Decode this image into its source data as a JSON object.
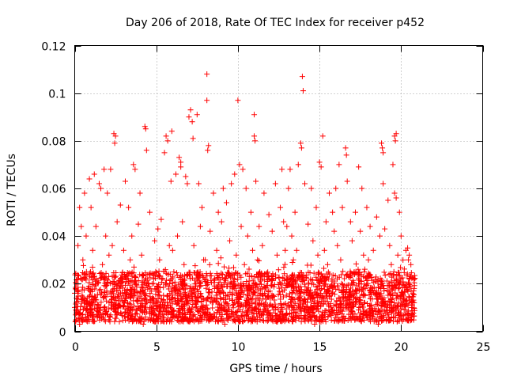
{
  "chart_data": {
    "type": "scatter",
    "title": "Day 206 of 2018, Rate Of TEC Index for receiver p452",
    "xlabel": "GPS time / hours",
    "ylabel": "ROTI / TECUs",
    "xlim": [
      0,
      25
    ],
    "ylim": [
      0,
      0.12
    ],
    "xticks": [
      "0",
      "5",
      "10",
      "15",
      "20",
      "25"
    ],
    "xtick_values": [
      0,
      5,
      10,
      15,
      20,
      25
    ],
    "yticks": [
      "0",
      "0.02",
      "0.04",
      "0.06",
      "0.08",
      "0.1",
      "0.12"
    ],
    "ytick_values": [
      0,
      0.02,
      0.04,
      0.06,
      0.08,
      0.1,
      0.12
    ],
    "grid": true,
    "marker": "+",
    "series": [
      {
        "name": "ROTI",
        "color": "#ff0000",
        "x_range": [
          0,
          20.85
        ],
        "bulk_range": [
          0.004,
          0.025
        ],
        "dense_points_count": 2600,
        "points": [
          [
            8.1,
            0.108
          ],
          [
            13.95,
            0.107
          ],
          [
            8.1,
            0.097
          ],
          [
            10.0,
            0.097
          ],
          [
            14.0,
            0.101
          ],
          [
            7.1,
            0.093
          ],
          [
            7.0,
            0.09
          ],
          [
            7.2,
            0.088
          ],
          [
            7.5,
            0.091
          ],
          [
            11.0,
            0.091
          ],
          [
            4.3,
            0.086
          ],
          [
            4.35,
            0.085
          ],
          [
            5.6,
            0.082
          ],
          [
            5.7,
            0.08
          ],
          [
            5.95,
            0.084
          ],
          [
            2.4,
            0.083
          ],
          [
            2.5,
            0.082
          ],
          [
            2.45,
            0.079
          ],
          [
            11.0,
            0.082
          ],
          [
            11.05,
            0.08
          ],
          [
            13.85,
            0.079
          ],
          [
            13.9,
            0.077
          ],
          [
            15.2,
            0.082
          ],
          [
            19.6,
            0.082
          ],
          [
            19.65,
            0.08
          ],
          [
            19.7,
            0.083
          ],
          [
            18.8,
            0.079
          ],
          [
            18.85,
            0.077
          ],
          [
            18.9,
            0.075
          ],
          [
            16.6,
            0.077
          ],
          [
            16.65,
            0.074
          ],
          [
            4.4,
            0.076
          ],
          [
            7.25,
            0.081
          ],
          [
            8.2,
            0.078
          ],
          [
            8.15,
            0.076
          ],
          [
            5.5,
            0.075
          ],
          [
            6.4,
            0.073
          ],
          [
            6.5,
            0.071
          ],
          [
            6.5,
            0.069
          ],
          [
            10.1,
            0.07
          ],
          [
            10.3,
            0.068
          ],
          [
            9.8,
            0.066
          ],
          [
            12.7,
            0.068
          ],
          [
            13.2,
            0.068
          ],
          [
            13.7,
            0.07
          ],
          [
            15.0,
            0.071
          ],
          [
            15.1,
            0.069
          ],
          [
            16.2,
            0.07
          ],
          [
            17.4,
            0.069
          ],
          [
            19.5,
            0.07
          ],
          [
            3.6,
            0.07
          ],
          [
            3.7,
            0.068
          ],
          [
            1.8,
            0.068
          ],
          [
            2.2,
            0.068
          ],
          [
            1.2,
            0.066
          ],
          [
            0.9,
            0.064
          ],
          [
            1.5,
            0.062
          ],
          [
            1.6,
            0.06
          ],
          [
            3.1,
            0.063
          ],
          [
            5.9,
            0.063
          ],
          [
            6.2,
            0.066
          ],
          [
            6.8,
            0.065
          ],
          [
            6.9,
            0.062
          ],
          [
            7.6,
            0.062
          ],
          [
            9.1,
            0.06
          ],
          [
            9.6,
            0.062
          ],
          [
            10.5,
            0.06
          ],
          [
            11.1,
            0.063
          ],
          [
            12.3,
            0.062
          ],
          [
            13.1,
            0.06
          ],
          [
            14.1,
            0.062
          ],
          [
            14.5,
            0.06
          ],
          [
            16.0,
            0.06
          ],
          [
            16.7,
            0.063
          ],
          [
            17.6,
            0.06
          ],
          [
            18.9,
            0.062
          ],
          [
            19.6,
            0.058
          ],
          [
            19.7,
            0.056
          ],
          [
            4.0,
            0.058
          ],
          [
            2.0,
            0.058
          ],
          [
            0.6,
            0.058
          ],
          [
            8.5,
            0.058
          ],
          [
            11.6,
            0.058
          ],
          [
            15.6,
            0.058
          ],
          [
            19.2,
            0.055
          ],
          [
            0.3,
            0.052
          ],
          [
            1.0,
            0.052
          ],
          [
            2.8,
            0.053
          ],
          [
            3.3,
            0.052
          ],
          [
            4.6,
            0.05
          ],
          [
            5.3,
            0.047
          ],
          [
            7.8,
            0.052
          ],
          [
            8.8,
            0.05
          ],
          [
            9.3,
            0.054
          ],
          [
            10.8,
            0.05
          ],
          [
            11.9,
            0.049
          ],
          [
            12.6,
            0.052
          ],
          [
            13.5,
            0.05
          ],
          [
            14.8,
            0.052
          ],
          [
            15.8,
            0.05
          ],
          [
            16.4,
            0.052
          ],
          [
            17.2,
            0.05
          ],
          [
            17.9,
            0.052
          ],
          [
            18.5,
            0.048
          ],
          [
            19.9,
            0.05
          ],
          [
            20.4,
            0.035
          ],
          [
            20.5,
            0.032
          ],
          [
            20.45,
            0.03
          ],
          [
            20.3,
            0.034
          ],
          [
            12.8,
            0.046
          ],
          [
            13.0,
            0.044
          ],
          [
            11.3,
            0.044
          ],
          [
            9.0,
            0.046
          ],
          [
            6.6,
            0.046
          ],
          [
            2.6,
            0.046
          ],
          [
            1.3,
            0.044
          ],
          [
            0.4,
            0.044
          ],
          [
            18.1,
            0.044
          ],
          [
            16.9,
            0.046
          ],
          [
            15.4,
            0.046
          ],
          [
            14.3,
            0.045
          ],
          [
            3.9,
            0.045
          ],
          [
            5.1,
            0.043
          ],
          [
            7.7,
            0.044
          ],
          [
            10.2,
            0.044
          ],
          [
            19.0,
            0.043
          ],
          [
            12.1,
            0.042
          ],
          [
            3.5,
            0.04
          ],
          [
            6.3,
            0.04
          ],
          [
            8.3,
            0.042
          ],
          [
            17.5,
            0.042
          ],
          [
            1.9,
            0.04
          ],
          [
            0.7,
            0.04
          ],
          [
            10.6,
            0.04
          ],
          [
            13.3,
            0.04
          ],
          [
            15.9,
            0.042
          ],
          [
            18.7,
            0.04
          ],
          [
            20.0,
            0.04
          ],
          [
            4.9,
            0.038
          ],
          [
            9.5,
            0.038
          ],
          [
            14.6,
            0.038
          ],
          [
            2.3,
            0.036
          ],
          [
            11.5,
            0.036
          ],
          [
            16.1,
            0.036
          ],
          [
            17.0,
            0.038
          ],
          [
            0.2,
            0.036
          ],
          [
            5.8,
            0.036
          ],
          [
            7.3,
            0.036
          ],
          [
            19.3,
            0.036
          ],
          [
            12.9,
            0.034
          ],
          [
            3.0,
            0.034
          ],
          [
            8.7,
            0.034
          ],
          [
            15.3,
            0.034
          ],
          [
            1.1,
            0.034
          ],
          [
            6.0,
            0.034
          ],
          [
            10.9,
            0.034
          ],
          [
            13.6,
            0.034
          ],
          [
            18.3,
            0.034
          ],
          [
            4.1,
            0.032
          ],
          [
            9.9,
            0.032
          ],
          [
            14.9,
            0.032
          ],
          [
            17.7,
            0.032
          ],
          [
            2.1,
            0.032
          ],
          [
            12.4,
            0.032
          ],
          [
            19.8,
            0.032
          ],
          [
            0.5,
            0.03
          ],
          [
            5.2,
            0.03
          ],
          [
            8.0,
            0.03
          ],
          [
            11.2,
            0.03
          ],
          [
            16.3,
            0.03
          ],
          [
            3.4,
            0.03
          ],
          [
            7.9,
            0.03
          ],
          [
            13.4,
            0.03
          ],
          [
            18.0,
            0.03
          ],
          [
            20.6,
            0.028
          ],
          [
            1.7,
            0.028
          ],
          [
            6.7,
            0.028
          ],
          [
            10.4,
            0.028
          ],
          [
            15.5,
            0.028
          ],
          [
            19.4,
            0.028
          ],
          [
            0.0,
            0.016
          ],
          [
            0.0,
            0.01
          ],
          [
            20.8,
            0.012
          ],
          [
            20.8,
            0.018
          ],
          [
            0.3,
            0.003
          ],
          [
            4.2,
            0.003
          ],
          [
            9.2,
            0.003
          ],
          [
            14.7,
            0.003
          ],
          [
            18.6,
            0.003
          ]
        ]
      }
    ]
  }
}
